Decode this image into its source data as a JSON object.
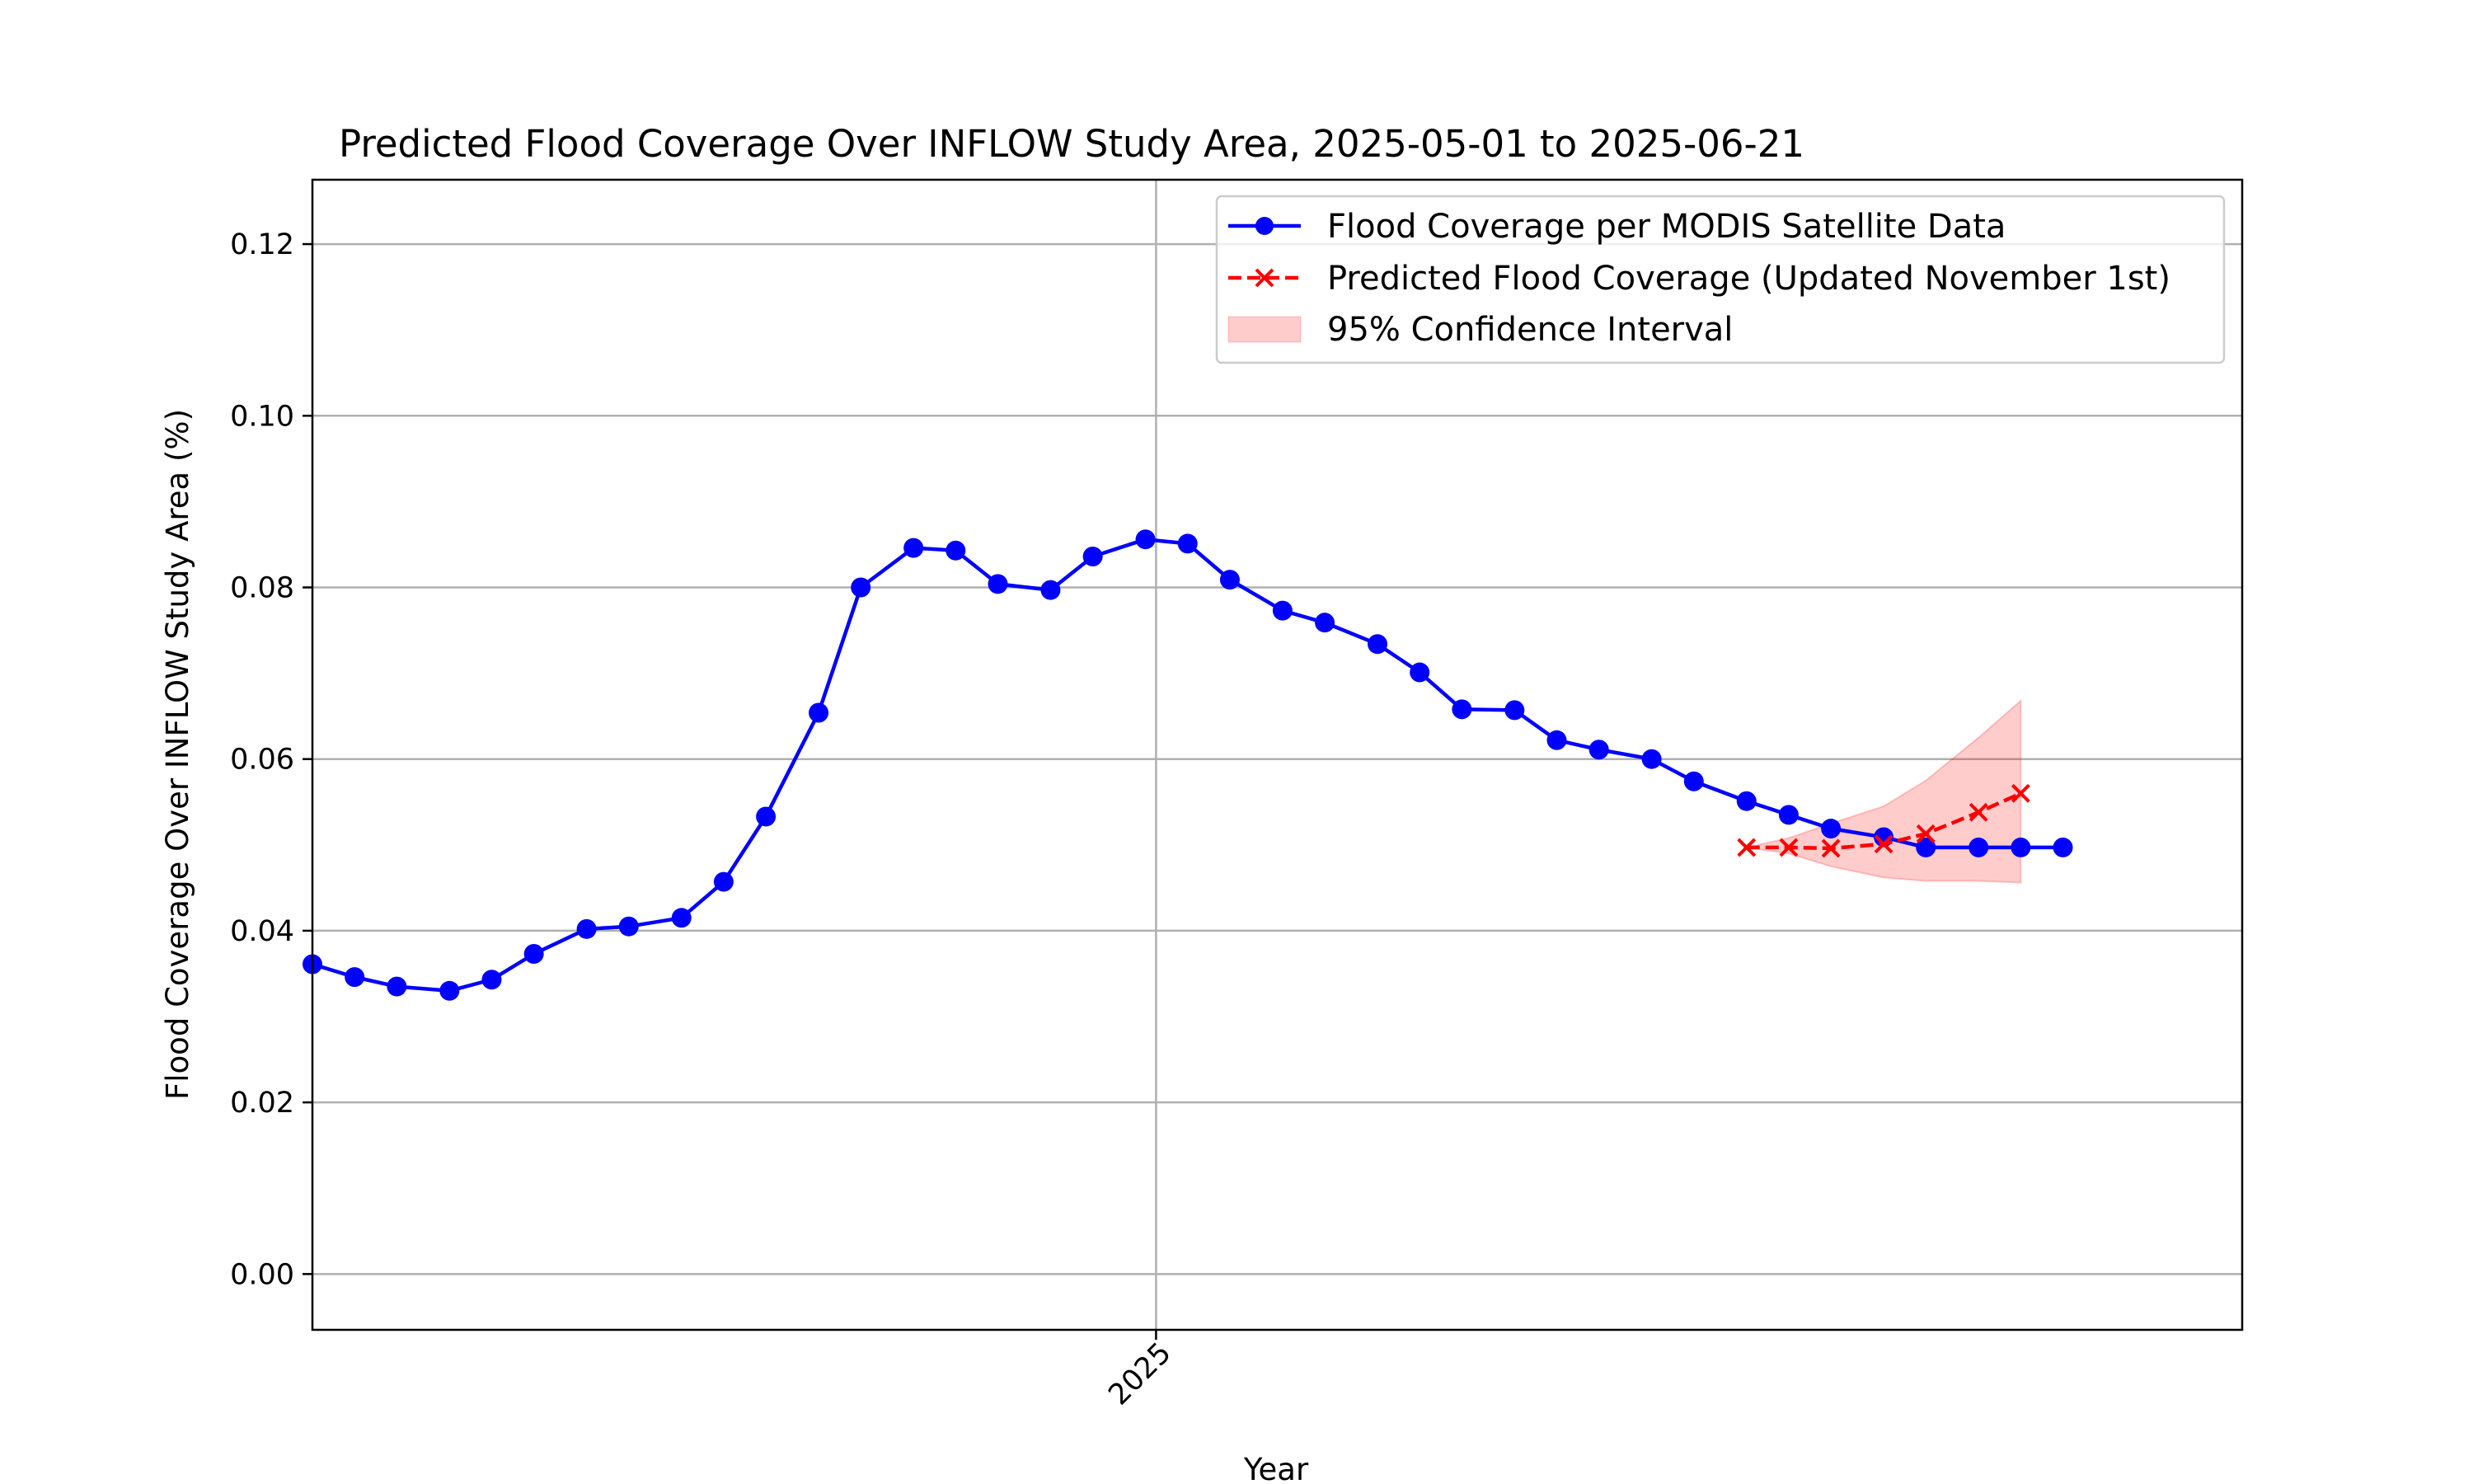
{
  "chart_data": {
    "type": "line",
    "title": "Predicted Flood Coverage Over INFLOW Study Area, 2025-05-01 to 2025-06-21",
    "xlabel": "Year",
    "ylabel": "Flood Coverage Over INFLOW Study Area (%)",
    "xlim": [
      "2024-10-13",
      "2025-04-14"
    ],
    "ylim": [
      -0.0065,
      0.1275
    ],
    "x_ticks": [
      {
        "value": "2025-01-01",
        "label": "2025"
      }
    ],
    "y_ticks": [
      {
        "value": 0.0,
        "label": "0.00"
      },
      {
        "value": 0.02,
        "label": "0.02"
      },
      {
        "value": 0.04,
        "label": "0.04"
      },
      {
        "value": 0.06,
        "label": "0.06"
      },
      {
        "value": 0.08,
        "label": "0.08"
      },
      {
        "value": 0.1,
        "label": "0.10"
      },
      {
        "value": 0.12,
        "label": "0.12"
      }
    ],
    "grid": true,
    "legend_position": "top-right",
    "series": [
      {
        "name": "Flood Coverage per MODIS Satellite Data",
        "color": "#0000ff",
        "style": "solid",
        "marker": "circle",
        "x": [
          "2024-10-13",
          "2024-10-17",
          "2024-10-21",
          "2024-10-26",
          "2024-10-30",
          "2024-11-03",
          "2024-11-08",
          "2024-11-12",
          "2024-11-17",
          "2024-11-21",
          "2024-11-25",
          "2024-11-30",
          "2024-12-04",
          "2024-12-09",
          "2024-12-13",
          "2024-12-17",
          "2024-12-22",
          "2024-12-26",
          "2024-12-31",
          "2025-01-04",
          "2025-01-08",
          "2025-01-13",
          "2025-01-17",
          "2025-01-22",
          "2025-01-26",
          "2025-01-30",
          "2025-02-04",
          "2025-02-08",
          "2025-02-12",
          "2025-02-17",
          "2025-02-21",
          "2025-02-26",
          "2025-03-02",
          "2025-03-06",
          "2025-03-11",
          "2025-03-15",
          "2025-03-20",
          "2025-03-24",
          "2025-03-28"
        ],
        "values": [
          0.0361,
          0.0346,
          0.0335,
          0.033,
          0.0343,
          0.0373,
          0.0402,
          0.0405,
          0.0415,
          0.0457,
          0.0533,
          0.0654,
          0.08,
          0.0846,
          0.0843,
          0.0804,
          0.0797,
          0.0836,
          0.0856,
          0.0851,
          0.0809,
          0.0773,
          0.0759,
          0.0734,
          0.0701,
          0.0658,
          0.0657,
          0.0622,
          0.0611,
          0.06,
          0.0574,
          0.0551,
          0.0535,
          0.0519,
          0.0509,
          0.0497,
          0.0497,
          0.0497,
          0.0497
        ]
      },
      {
        "name": "Predicted Flood Coverage (Updated November 1st)",
        "color": "#ff0000",
        "style": "dashed",
        "marker": "x",
        "x": [
          "2025-02-26",
          "2025-03-02",
          "2025-03-06",
          "2025-03-11",
          "2025-03-15",
          "2025-03-20",
          "2025-03-24"
        ],
        "values": [
          0.0497,
          0.0497,
          0.0496,
          0.0501,
          0.0513,
          0.0538,
          0.056
        ]
      }
    ],
    "confidence_interval": {
      "name": "95% Confidence Interval",
      "color": "#ff0000",
      "opacity": 0.2,
      "x": [
        "2025-02-26",
        "2025-03-02",
        "2025-03-06",
        "2025-03-11",
        "2025-03-15",
        "2025-03-20",
        "2025-03-24"
      ],
      "upper": [
        0.0497,
        0.0508,
        0.0525,
        0.0545,
        0.0575,
        0.0625,
        0.0668
      ],
      "lower": [
        0.0497,
        0.049,
        0.0475,
        0.0462,
        0.0458,
        0.0458,
        0.0456
      ]
    }
  }
}
